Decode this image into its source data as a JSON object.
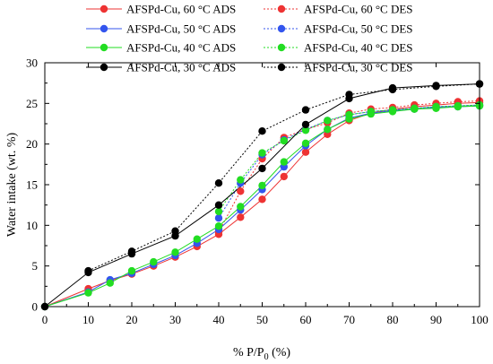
{
  "chart_data": {
    "type": "line",
    "xlabel_main": "% P/P",
    "xlabel_sub": "0",
    "xlabel_tail": " (%)",
    "ylabel": "Water intake (wt. %)",
    "xlim": [
      0,
      100
    ],
    "ylim": [
      0,
      30
    ],
    "xticks": [
      0,
      10,
      20,
      30,
      40,
      50,
      60,
      70,
      80,
      90,
      100
    ],
    "yticks": [
      0,
      5,
      10,
      15,
      20,
      25,
      30
    ],
    "grid": false,
    "legend_position": "top, two columns",
    "series": [
      {
        "name": "AFSPd-Cu, 60 °C ADS",
        "color": "#ee3333",
        "dashed": false,
        "x": [
          0,
          10,
          15,
          20,
          25,
          30,
          35,
          40,
          45,
          50,
          55,
          60,
          65,
          70,
          75,
          80,
          85,
          90,
          95,
          100
        ],
        "y": [
          0,
          2.2,
          3.2,
          4.0,
          5.0,
          6.1,
          7.4,
          8.9,
          11.0,
          13.2,
          16.0,
          19.0,
          21.2,
          22.9,
          23.8,
          24.3,
          24.6,
          24.8,
          25.0,
          25.1
        ]
      },
      {
        "name": "AFSPd-Cu, 60 °C DES",
        "color": "#ee3333",
        "dashed": true,
        "x": [
          40,
          45,
          50,
          55,
          60,
          65,
          70,
          75,
          80,
          85,
          90,
          95,
          100
        ],
        "y": [
          9.2,
          14.2,
          18.2,
          20.8,
          21.8,
          22.6,
          23.8,
          24.3,
          24.5,
          24.8,
          25.0,
          25.2,
          25.3
        ]
      },
      {
        "name": "AFSPd-Cu, 50 °C ADS",
        "color": "#3355ee",
        "dashed": false,
        "x": [
          0,
          10,
          15,
          20,
          25,
          30,
          35,
          40,
          45,
          50,
          55,
          60,
          65,
          70,
          75,
          80,
          85,
          90,
          95,
          100
        ],
        "y": [
          0,
          1.8,
          3.3,
          4.1,
          5.2,
          6.3,
          7.8,
          9.5,
          11.9,
          14.4,
          17.2,
          19.8,
          21.8,
          23.2,
          23.8,
          24.1,
          24.3,
          24.5,
          24.6,
          24.7
        ]
      },
      {
        "name": "AFSPd-Cu, 50 °C DES",
        "color": "#3355ee",
        "dashed": true,
        "x": [
          40,
          45,
          50,
          55,
          60,
          65,
          70,
          75,
          80,
          85,
          90,
          95,
          100
        ],
        "y": [
          10.9,
          15.2,
          18.7,
          20.5,
          21.8,
          22.9,
          23.6,
          24.0,
          24.2,
          24.4,
          24.6,
          24.7,
          24.8
        ]
      },
      {
        "name": "AFSPd-Cu, 40 °C ADS",
        "color": "#22dd22",
        "dashed": false,
        "x": [
          0,
          10,
          15,
          20,
          25,
          30,
          35,
          40,
          45,
          50,
          55,
          60,
          65,
          70,
          75,
          80,
          85,
          90,
          95,
          100
        ],
        "y": [
          0,
          1.7,
          2.9,
          4.4,
          5.5,
          6.7,
          8.3,
          9.9,
          12.3,
          14.9,
          17.8,
          20.1,
          21.8,
          23.1,
          23.7,
          24.0,
          24.3,
          24.4,
          24.6,
          24.7
        ]
      },
      {
        "name": "AFSPd-Cu, 40 °C DES",
        "color": "#22dd22",
        "dashed": true,
        "x": [
          40,
          45,
          50,
          55,
          60,
          65,
          70,
          75,
          80,
          85,
          90,
          95,
          100
        ],
        "y": [
          11.7,
          15.6,
          18.9,
          20.4,
          21.7,
          22.9,
          23.6,
          24.0,
          24.2,
          24.4,
          24.6,
          24.7,
          24.8
        ]
      },
      {
        "name": "AFSPd-Cu, 30 °C ADS",
        "color": "#000000",
        "dashed": false,
        "x": [
          0,
          10,
          20,
          30,
          40,
          50,
          60,
          70,
          80,
          90,
          100
        ],
        "y": [
          0,
          4.2,
          6.5,
          8.7,
          12.5,
          17.0,
          22.4,
          25.6,
          26.9,
          27.2,
          27.4
        ]
      },
      {
        "name": "AFSPd-Cu, 30 °C DES",
        "color": "#000000",
        "dashed": true,
        "x": [
          10,
          20,
          30,
          40,
          50,
          60,
          70,
          80,
          90,
          100
        ],
        "y": [
          4.4,
          6.8,
          9.3,
          15.2,
          21.6,
          24.2,
          26.1,
          26.7,
          27.1,
          27.4
        ]
      }
    ]
  }
}
